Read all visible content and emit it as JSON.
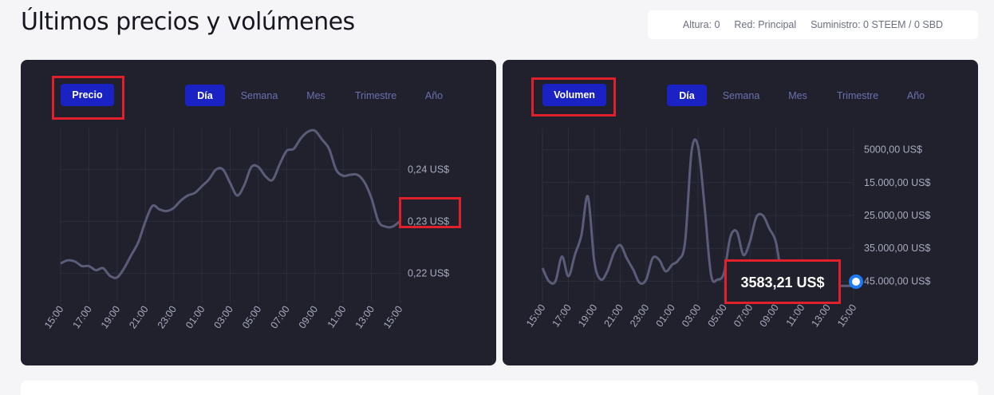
{
  "page": {
    "title": "Últimos precios y volúmenes"
  },
  "status": {
    "height": "Altura: 0",
    "network": "Red: Principal",
    "supply": "Suministro: 0 STEEM / 0 SBD"
  },
  "price_card": {
    "metric_label": "Precio",
    "ranges": [
      "Día",
      "Semana",
      "Mes",
      "Trimestre",
      "Año"
    ],
    "active_range": "Día",
    "y_ticks": [
      "0,24 US$",
      "0,23 US$",
      "0,22 US$"
    ],
    "x_ticks": [
      "15:00",
      "17:00",
      "19:00",
      "21:00",
      "23:00",
      "01:00",
      "03:00",
      "05:00",
      "07:00",
      "09:00",
      "11:00",
      "13:00",
      "15:00"
    ]
  },
  "volume_card": {
    "metric_label": "Volumen",
    "ranges": [
      "Día",
      "Semana",
      "Mes",
      "Trimestre",
      "Año"
    ],
    "active_range": "Día",
    "y_ticks": [
      "45.000,00 US$",
      "35.000,00 US$",
      "25.000,00 US$",
      "15.000,00 US$",
      "5000,00 US$"
    ],
    "x_ticks": [
      "15:00",
      "17:00",
      "19:00",
      "21:00",
      "23:00",
      "01:00",
      "03:00",
      "05:00",
      "07:00",
      "09:00",
      "11:00",
      "13:00",
      "15:00"
    ],
    "tooltip_value": "3583,21 US$"
  },
  "colors": {
    "accent": "#1a22c4",
    "card_bg": "#20212d",
    "line": "#5a5c78",
    "highlight": "#e0202a",
    "marker": "#1e7bf5"
  },
  "chart_data": [
    {
      "type": "line",
      "ylabel": "",
      "xlabel": "",
      "ylim": [
        0.215,
        0.247
      ],
      "y_ticks": [
        0.22,
        0.23,
        0.24
      ],
      "x_ticks": [
        "15:00",
        "17:00",
        "19:00",
        "21:00",
        "23:00",
        "01:00",
        "03:00",
        "05:00",
        "07:00",
        "09:00",
        "11:00",
        "13:00",
        "15:00"
      ],
      "x": [
        0,
        0.5,
        1,
        1.5,
        2,
        2.5,
        3,
        3.5,
        4,
        4.5,
        5,
        5.5,
        6,
        6.5,
        7,
        7.5,
        8,
        8.5,
        9,
        9.5,
        10,
        10.5,
        11,
        11.5,
        12,
        12.5,
        13,
        13.5,
        14,
        14.5,
        15,
        15.5,
        16,
        16.5,
        17,
        17.5,
        18,
        18.5,
        19,
        19.5,
        20,
        20.5,
        21,
        21.5,
        22,
        22.5,
        23,
        23.5,
        24
      ],
      "values": [
        0.2219,
        0.2225,
        0.2223,
        0.2214,
        0.2214,
        0.2206,
        0.221,
        0.2195,
        0.2192,
        0.221,
        0.2235,
        0.226,
        0.23,
        0.233,
        0.2323,
        0.232,
        0.2326,
        0.234,
        0.235,
        0.2355,
        0.2368,
        0.2381,
        0.24,
        0.24,
        0.2374,
        0.235,
        0.237,
        0.2405,
        0.2405,
        0.2387,
        0.238,
        0.241,
        0.2436,
        0.244,
        0.246,
        0.2473,
        0.2475,
        0.2458,
        0.244,
        0.24,
        0.2388,
        0.239,
        0.239,
        0.2376,
        0.2345,
        0.23,
        0.229,
        0.229,
        0.23
      ]
    },
    {
      "type": "line",
      "ylabel": "",
      "xlabel": "",
      "ylim": [
        0,
        50000
      ],
      "y_ticks": [
        5000,
        15000,
        25000,
        35000,
        45000
      ],
      "x_ticks": [
        "15:00",
        "17:00",
        "19:00",
        "21:00",
        "23:00",
        "01:00",
        "03:00",
        "05:00",
        "07:00",
        "09:00",
        "11:00",
        "13:00",
        "15:00"
      ],
      "x": [
        0,
        0.5,
        1,
        1.5,
        2,
        2.5,
        3,
        3.5,
        4,
        4.5,
        5,
        5.5,
        6,
        6.5,
        7,
        7.5,
        8,
        8.5,
        9,
        9.5,
        10,
        10.5,
        11,
        11.5,
        12,
        12.5,
        13,
        13.5,
        14,
        14.5,
        15,
        15.5,
        16,
        16.5,
        17,
        17.5,
        18,
        18.5,
        19,
        19.5,
        20,
        20.5,
        21,
        21.5,
        22,
        22.5,
        23,
        23.5,
        24
      ],
      "values": [
        9000,
        5000,
        5000,
        12500,
        6500,
        13000,
        19000,
        30800,
        11000,
        5500,
        8000,
        13500,
        16000,
        12000,
        8500,
        4500,
        5500,
        12000,
        11500,
        8000,
        10000,
        11500,
        17000,
        44500,
        46000,
        28000,
        7000,
        5500,
        7500,
        18500,
        20000,
        13000,
        17000,
        24500,
        25000,
        21000,
        17000,
        6000,
        5000,
        4000,
        9000,
        9500,
        7000,
        5000,
        3583,
        3583,
        3583,
        3583,
        3583
      ]
    }
  ]
}
